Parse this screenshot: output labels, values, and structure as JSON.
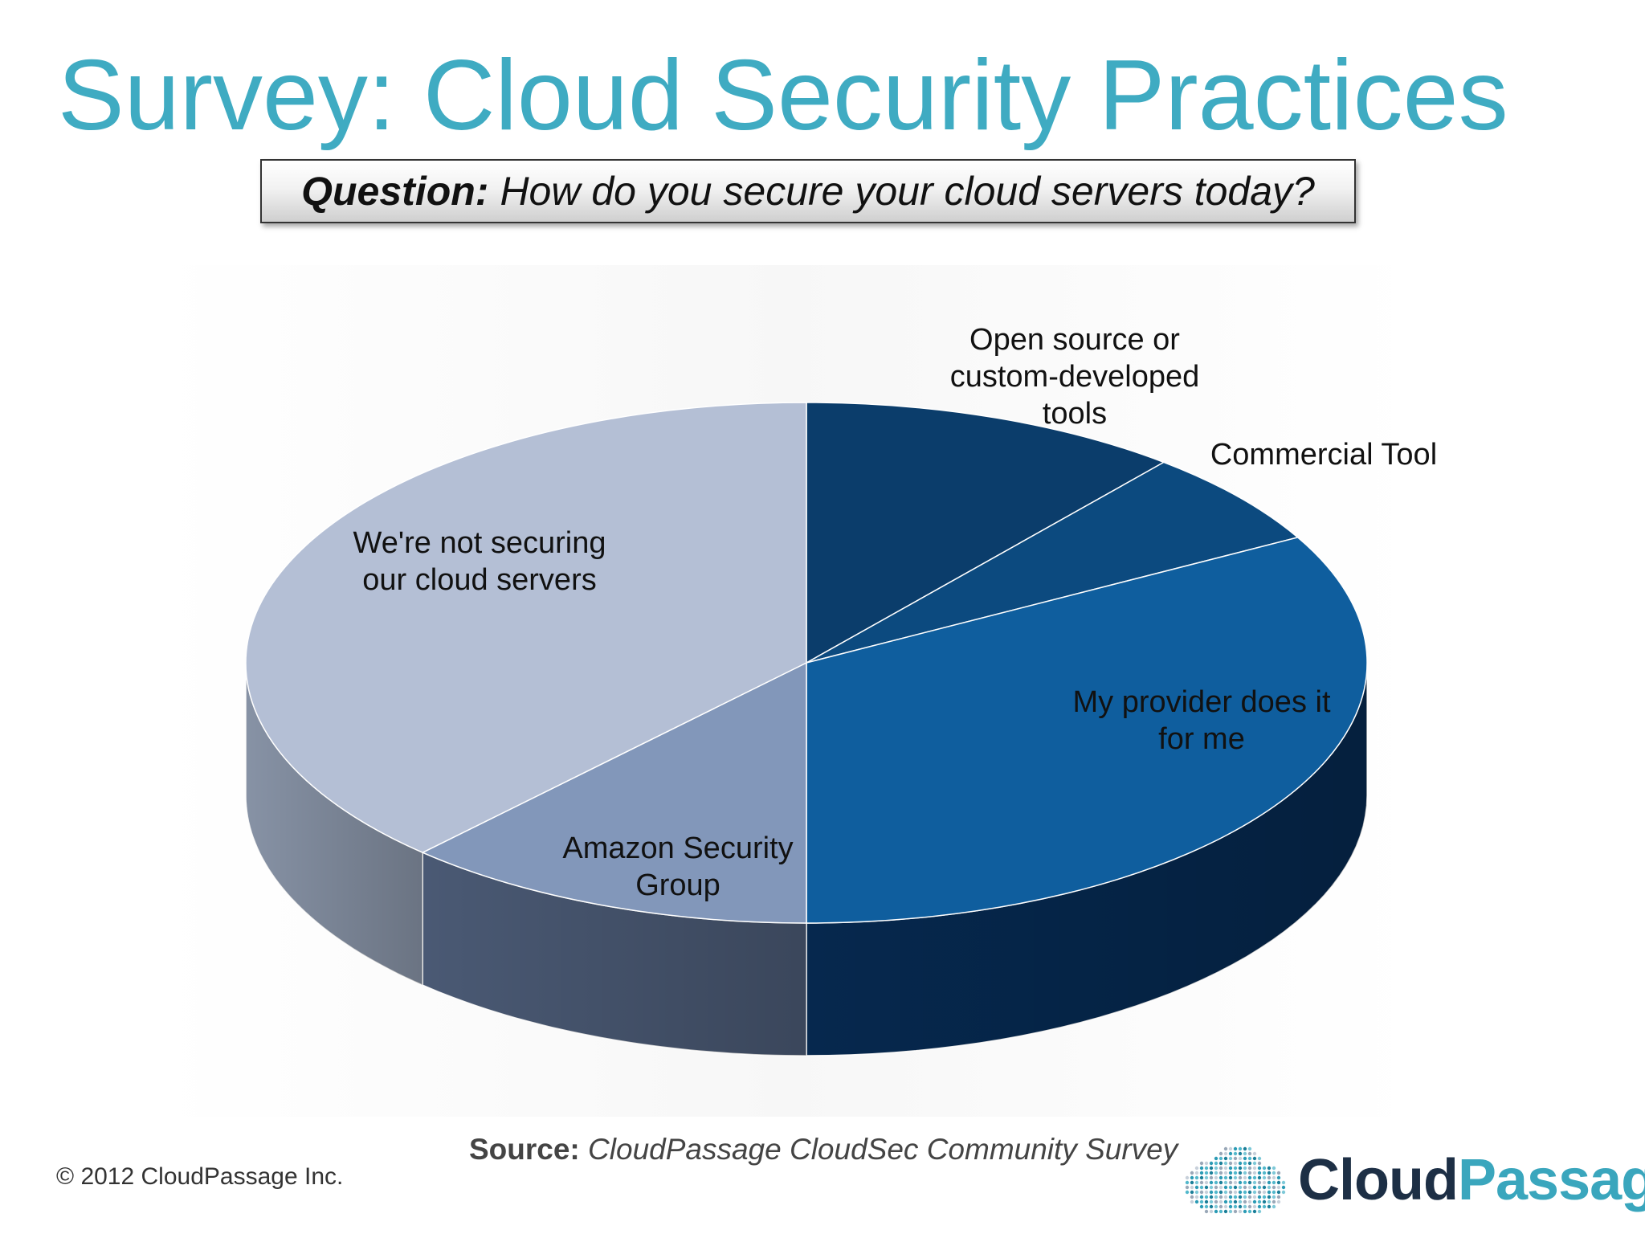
{
  "slide": {
    "title": "Survey: Cloud Security Practices",
    "question_label": "Question:",
    "question_text": "How do you secure your cloud servers today?",
    "source_label": "Source:",
    "source_text": "CloudPassage CloudSec Community Survey",
    "copyright": "© 2012 CloudPassage Inc.",
    "logo_text_part1": "Cloud",
    "logo_text_part2": "Passage",
    "title_color": "#3fabc2"
  },
  "chart_data": {
    "type": "pie",
    "three_d": true,
    "title": "",
    "start": "12 o'clock",
    "direction": "clockwise",
    "slices": [
      {
        "label": "Open source or custom-developed tools",
        "value": 11,
        "color": "#0b3d6b"
      },
      {
        "label": "Commercial Tool",
        "value": 6,
        "color": "#0c4a7f"
      },
      {
        "label": "My provider does it for me",
        "value": 33,
        "color": "#0f5e9e"
      },
      {
        "label": "Amazon Security Group",
        "value": 12,
        "color": "#8297ba"
      },
      {
        "label": "We're not securing our cloud servers",
        "value": 38,
        "color": "#b4bfd5"
      }
    ],
    "labels": [
      [
        "Open source or",
        "custom-developed",
        "tools"
      ],
      [
        "Commercial Tool"
      ],
      [
        "My provider does it",
        "for me"
      ],
      [
        "Amazon Security",
        "Group"
      ],
      [
        "We're not securing",
        "our cloud servers"
      ]
    ],
    "side_colors": [
      "#052040",
      "#062648",
      "#062a52",
      "#4e5e7a",
      "#8e9aae"
    ]
  }
}
